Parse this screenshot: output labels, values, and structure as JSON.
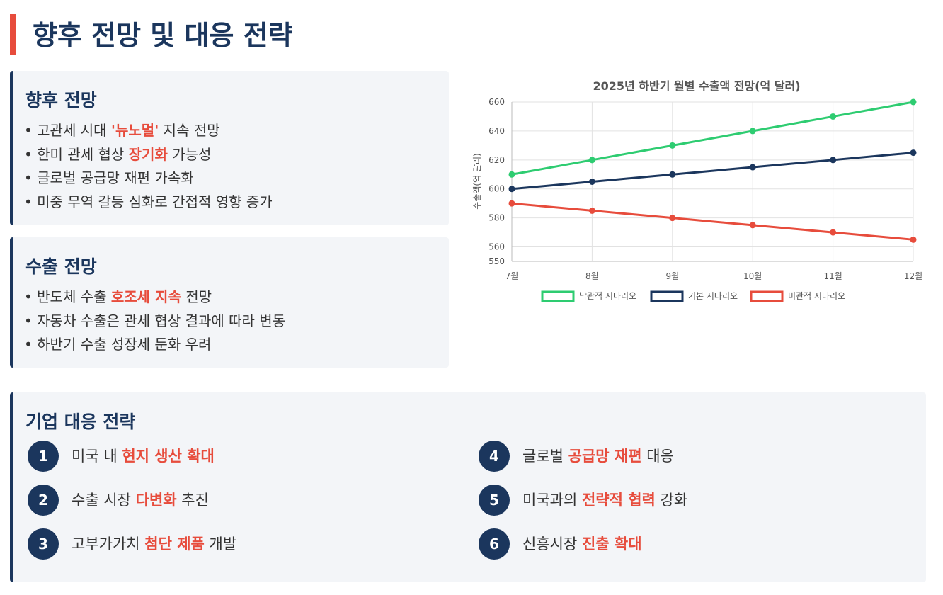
{
  "header": {
    "title": "향후 전망 및 대응 전략"
  },
  "outlook": {
    "title": "향후 전망",
    "items": [
      {
        "before": "고관세 시대 ",
        "highlight": "'뉴노멀'",
        "after": " 지속 전망"
      },
      {
        "before": "한미 관세 협상 ",
        "highlight": "장기화",
        "after": " 가능성"
      },
      {
        "before": "글로벌 공급망 재편 가속화",
        "highlight": "",
        "after": ""
      },
      {
        "before": "미중 무역 갈등 심화로 간접적 영향 증가",
        "highlight": "",
        "after": ""
      }
    ]
  },
  "export_outlook": {
    "title": "수출 전망",
    "items": [
      {
        "before": "반도체 수출 ",
        "highlight": "호조세 지속",
        "after": " 전망"
      },
      {
        "before": "자동차 수출은 관세 협상 결과에 따라 변동",
        "highlight": "",
        "after": ""
      },
      {
        "before": "하반기 수출 성장세 둔화 우려",
        "highlight": "",
        "after": ""
      }
    ]
  },
  "strategy": {
    "title": "기업 대응 전략",
    "items": [
      {
        "num": "1",
        "before": "미국 내 ",
        "highlight": "현지 생산 확대",
        "after": ""
      },
      {
        "num": "2",
        "before": "수출 시장 ",
        "highlight": "다변화",
        "after": " 추진"
      },
      {
        "num": "3",
        "before": "고부가가치 ",
        "highlight": "첨단 제품",
        "after": " 개발"
      },
      {
        "num": "4",
        "before": "글로벌 ",
        "highlight": "공급망 재편",
        "after": " 대응"
      },
      {
        "num": "5",
        "before": "미국과의 ",
        "highlight": "전략적 협력",
        "after": " 강화"
      },
      {
        "num": "6",
        "before": "신흥시장 ",
        "highlight": "진출 확대",
        "after": ""
      }
    ]
  },
  "colors": {
    "primary": "#1b365d",
    "accent": "#e74c3c",
    "optimistic": "#2ecc71",
    "base": "#1b365d",
    "pessimistic": "#e74c3c"
  },
  "chart_data": {
    "type": "line",
    "title": "2025년 하반기 월별 수출액 전망(억 달러)",
    "xlabel": "",
    "ylabel": "수출액(억 달러)",
    "categories": [
      "7월",
      "8월",
      "9월",
      "10월",
      "11월",
      "12월"
    ],
    "ylim": [
      550,
      660
    ],
    "yticks": [
      550,
      560,
      580,
      600,
      620,
      640,
      660
    ],
    "grid": true,
    "legend_position": "bottom",
    "series": [
      {
        "name": "낙관적 시나리오",
        "color": "#2ecc71",
        "values": [
          610,
          620,
          630,
          640,
          650,
          660
        ]
      },
      {
        "name": "기본 시나리오",
        "color": "#1b365d",
        "values": [
          600,
          605,
          610,
          615,
          620,
          625
        ]
      },
      {
        "name": "비관적 시나리오",
        "color": "#e74c3c",
        "values": [
          590,
          585,
          580,
          575,
          570,
          565
        ]
      }
    ]
  }
}
